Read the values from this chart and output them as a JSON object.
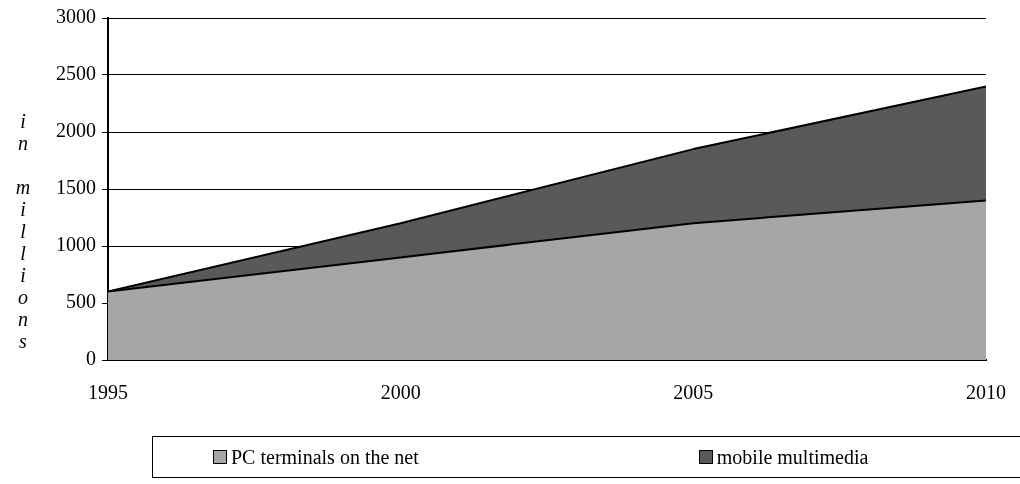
{
  "chart_data": {
    "type": "area",
    "stacked": true,
    "ylabel": "in millions",
    "x": [
      1995,
      2000,
      2005,
      2010
    ],
    "series": [
      {
        "name": "PC terminals on the net",
        "color": "#a6a6a6",
        "values": [
          600,
          900,
          1200,
          1400
        ]
      },
      {
        "name": "mobile multimedia",
        "color": "#595959",
        "values": [
          0,
          300,
          650,
          1000
        ]
      }
    ],
    "xlim": [
      1995,
      2010
    ],
    "xticks": [
      1995,
      2000,
      2005,
      2010
    ],
    "ylim": [
      0,
      3000
    ],
    "yticks": [
      0,
      500,
      1000,
      1500,
      2000,
      2500,
      3000
    ],
    "grid": "y",
    "legend": "bottom"
  }
}
